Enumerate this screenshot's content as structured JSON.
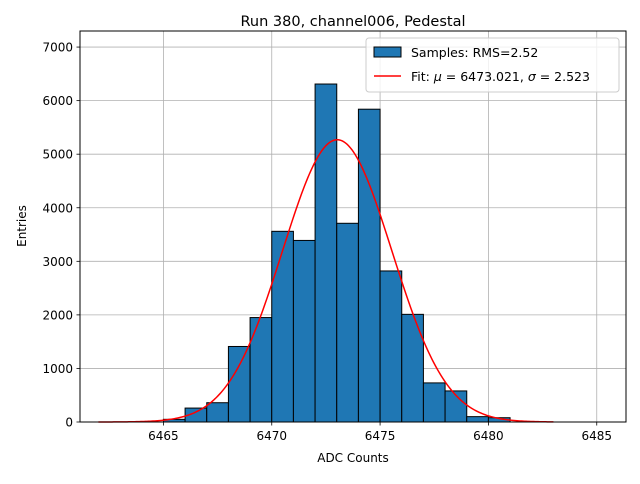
{
  "chart_data": {
    "type": "bar",
    "title": "Run 380, channel006, Pedestal",
    "xlabel": "ADC Counts",
    "ylabel": "Entries",
    "xlim": [
      6461.15,
      6486.35
    ],
    "ylim": [
      0,
      7300
    ],
    "xticks": [
      6465,
      6470,
      6475,
      6480,
      6485
    ],
    "yticks": [
      0,
      1000,
      2000,
      3000,
      4000,
      5000,
      6000,
      7000
    ],
    "grid": true,
    "legend_position": "top-right",
    "bar_color": "#1f77b4",
    "fit_color": "#ff0000",
    "histogram": {
      "name": "Samples: RMS=2.52",
      "bin_edges": [
        6465,
        6466,
        6467,
        6468,
        6469,
        6470,
        6471,
        6472,
        6473,
        6474,
        6475,
        6476,
        6477,
        6478,
        6479,
        6480,
        6481
      ],
      "counts": [
        50,
        260,
        360,
        1410,
        1950,
        3560,
        3390,
        6310,
        3710,
        5840,
        2820,
        2010,
        730,
        580,
        100,
        80
      ]
    },
    "fit": {
      "name_prefix": "Fit: ",
      "mu_symbol": "μ",
      "mu_text": " = 6473.021, ",
      "sigma_symbol": "σ",
      "sigma_text": " = 2.523",
      "mu": 6473.021,
      "sigma": 2.523,
      "amplitude": 5270,
      "x_range": [
        6462,
        6483
      ]
    }
  }
}
